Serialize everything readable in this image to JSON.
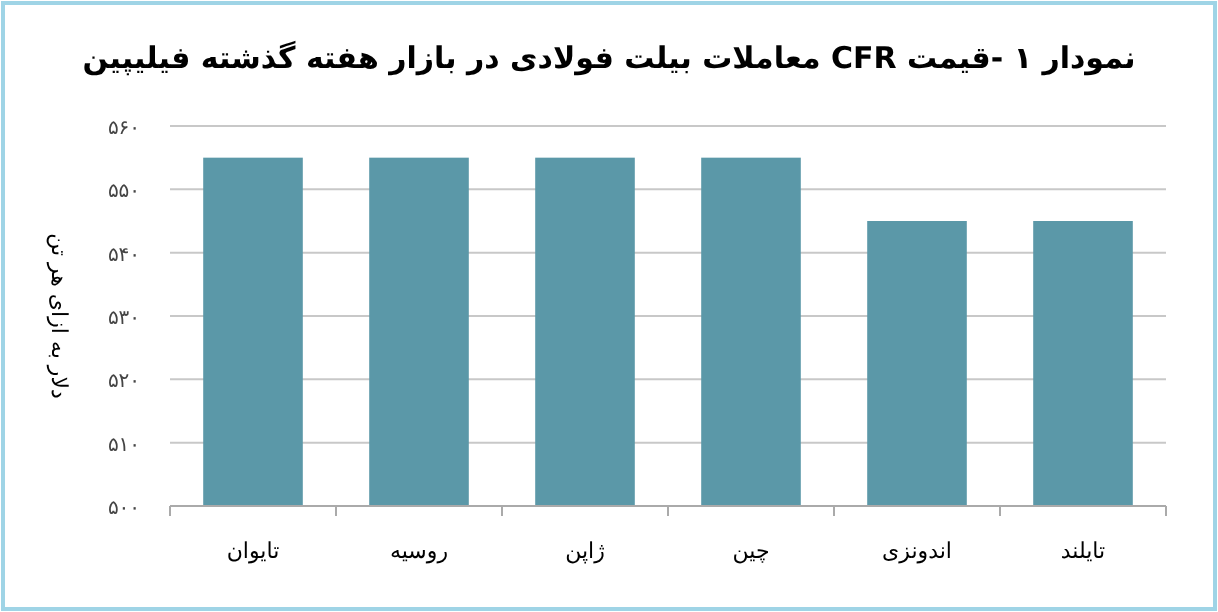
{
  "chart_data": {
    "type": "bar",
    "title": "نمودار ۱ -قیمت CFR معاملات بیلت فولادی در بازار هفته گذشته فیلیپین",
    "ylabel": "دلار به ازای هر تن",
    "categories": [
      "تایوان",
      "روسیه",
      "ژاپن",
      "چین",
      "اندونزی",
      "تایلند"
    ],
    "values": [
      555,
      555,
      555,
      555,
      545,
      545
    ],
    "color": "#5b98a8",
    "ylim": [
      500,
      560
    ],
    "yticks": [
      {
        "value": 500,
        "label": "۵۰۰"
      },
      {
        "value": 510,
        "label": "۵۱۰"
      },
      {
        "value": 520,
        "label": "۵۲۰"
      },
      {
        "value": 530,
        "label": "۵۳۰"
      },
      {
        "value": 540,
        "label": "۵۴۰"
      },
      {
        "value": 550,
        "label": "۵۵۰"
      },
      {
        "value": 560,
        "label": "۵۶۰"
      }
    ],
    "grid": "y"
  }
}
